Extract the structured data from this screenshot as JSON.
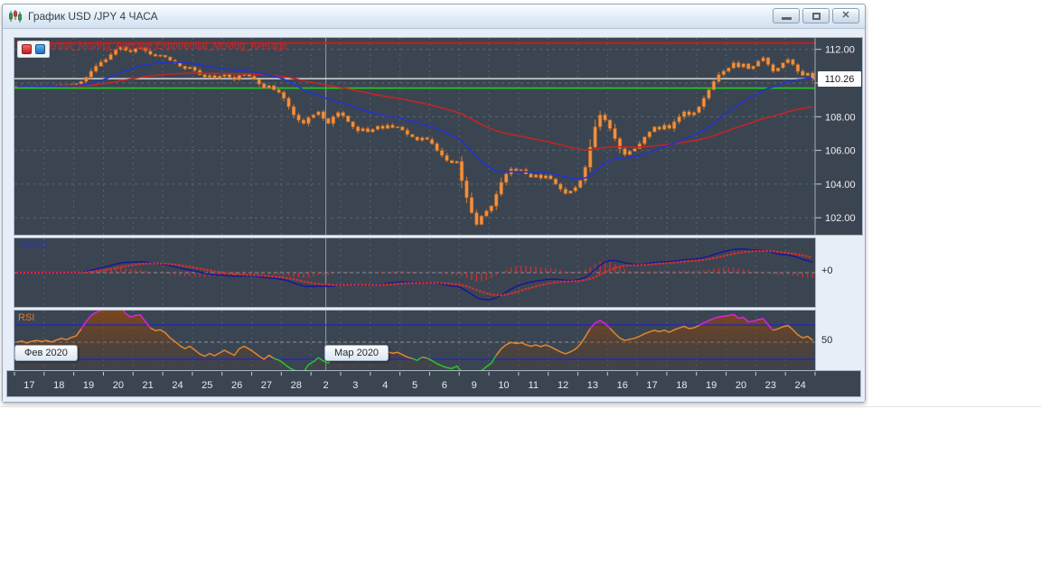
{
  "window": {
    "title": "График USD /JPY  4 ЧАСА",
    "controls": {
      "close_glyph": "✕"
    }
  },
  "legend": {
    "text": "Exponential_Moving_Average Exponential_Moving_Average"
  },
  "colors": {
    "candle": "#ef9146",
    "candle_border": "#b4641f",
    "wick": "#d9813a",
    "ema_fast": "#2433cc",
    "ema_slow": "#c22525",
    "resistance_line": "#cc1a1a",
    "support_line": "#1ecb1e",
    "current_price_line": "#f2f2f2",
    "macd_line": "#16179a",
    "macd_signal": "#d03030",
    "rsi_line": "#e2862e",
    "rsi_overbought": "#e020e0",
    "rsi_oversold": "#28c828",
    "rsi_level_lines": "#2222cc"
  },
  "chart_data": {
    "type": "candlestick",
    "symbol": "USD /JPY",
    "timeframe": "4 ЧАСА",
    "current_price": "110.26",
    "levels": {
      "resistance": 112.38,
      "current": 110.26,
      "support": 109.7
    },
    "ylim": [
      101.0,
      112.68
    ],
    "grid_step": 2,
    "y_tick_labels_visible": [
      "112.00",
      "108.00",
      "106.00",
      "104.00",
      "102.00"
    ],
    "x_labels": [
      "17",
      "18",
      "19",
      "20",
      "21",
      "24",
      "25",
      "26",
      "27",
      "28",
      "2",
      "3",
      "4",
      "5",
      "6",
      "9",
      "10",
      "11",
      "12",
      "13",
      "16",
      "17",
      "18",
      "19",
      "20",
      "23",
      "24"
    ],
    "candles_per_day": 6,
    "month_labels": [
      {
        "text": "Фев 2020"
      },
      {
        "text": "Мар 2020"
      }
    ],
    "panels": {
      "macd": {
        "label": "MACD",
        "axis_label": "+0"
      },
      "rsi": {
        "label": "RSI",
        "axis_label": "50"
      }
    },
    "closes": [
      109.82,
      109.85,
      109.8,
      109.84,
      109.86,
      109.84,
      109.86,
      109.83,
      109.87,
      109.9,
      109.88,
      109.92,
      109.95,
      110.1,
      110.35,
      110.7,
      111.0,
      111.25,
      111.4,
      111.7,
      112.0,
      112.15,
      111.95,
      111.85,
      112.05,
      112.1,
      111.9,
      111.7,
      111.6,
      111.65,
      111.55,
      111.35,
      111.2,
      111.0,
      110.85,
      110.95,
      110.75,
      110.5,
      110.35,
      110.45,
      110.3,
      110.4,
      110.5,
      110.35,
      110.2,
      110.45,
      110.55,
      110.4,
      110.2,
      109.95,
      109.7,
      109.85,
      109.6,
      109.45,
      109.1,
      108.6,
      108.1,
      107.8,
      107.6,
      107.95,
      108.1,
      108.3,
      107.9,
      107.6,
      108.0,
      108.25,
      108.05,
      107.7,
      107.4,
      107.15,
      107.3,
      107.1,
      107.25,
      107.45,
      107.3,
      107.5,
      107.35,
      107.4,
      107.2,
      106.95,
      106.8,
      106.6,
      106.75,
      106.65,
      106.4,
      106.0,
      105.7,
      105.4,
      105.25,
      105.35,
      104.2,
      103.2,
      102.3,
      101.6,
      102.1,
      102.4,
      102.7,
      103.4,
      104.1,
      104.6,
      104.9,
      104.75,
      104.85,
      104.6,
      104.4,
      104.55,
      104.35,
      104.5,
      104.3,
      104.0,
      103.7,
      103.45,
      103.6,
      103.8,
      104.2,
      105.0,
      106.2,
      107.4,
      108.1,
      107.8,
      107.3,
      106.7,
      106.1,
      105.75,
      105.95,
      106.1,
      106.4,
      106.8,
      107.1,
      107.4,
      107.25,
      107.5,
      107.3,
      107.7,
      108.0,
      108.3,
      108.1,
      108.25,
      108.6,
      109.1,
      109.6,
      110.1,
      110.5,
      110.7,
      110.9,
      111.2,
      110.95,
      111.15,
      110.85,
      111.0,
      111.3,
      111.5,
      111.1,
      110.7,
      110.9,
      111.2,
      111.4,
      111.1,
      110.7,
      110.45,
      110.6,
      110.26
    ]
  }
}
